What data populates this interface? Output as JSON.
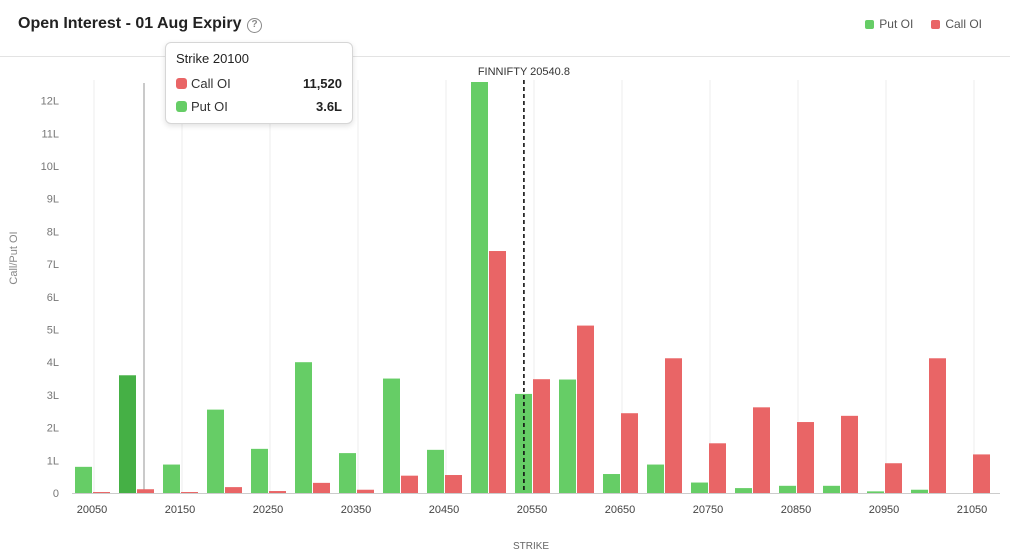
{
  "header": {
    "title": "Open Interest - 01 Aug Expiry",
    "help_icon": "question-circle-icon"
  },
  "legend": [
    {
      "label": "Put OI",
      "color": "#66cd66"
    },
    {
      "label": "Call OI",
      "color": "#e96566"
    }
  ],
  "tooltip": {
    "title": "Strike 20100",
    "rows": [
      {
        "label": "Call OI",
        "value": "11,520",
        "color": "#e96566"
      },
      {
        "label": "Put OI",
        "value": "3.6L",
        "color": "#66cd66"
      }
    ]
  },
  "chart_data": {
    "type": "bar",
    "xlabel": "STRIKE",
    "ylabel": "Call/Put OI",
    "ylim": [
      0,
      12.5
    ],
    "y_unit": "L (lakh)",
    "y_ticks": [
      "0",
      "1L",
      "2L",
      "3L",
      "4L",
      "5L",
      "6L",
      "7L",
      "8L",
      "9L",
      "10L",
      "11L",
      "12L"
    ],
    "x_tick_labels": [
      "20050",
      "20150",
      "20250",
      "20350",
      "20450",
      "20550",
      "20650",
      "20750",
      "20850",
      "20950",
      "21050"
    ],
    "categories": [
      "20050",
      "20100",
      "20150",
      "20200",
      "20250",
      "20300",
      "20350",
      "20400",
      "20450",
      "20500",
      "20550",
      "20600",
      "20650",
      "20700",
      "20750",
      "20800",
      "20850",
      "20900",
      "20950",
      "21000",
      "21050"
    ],
    "series": [
      {
        "name": "Put OI",
        "color": "#66cd66",
        "values": [
          0.8,
          3.6,
          0.87,
          2.55,
          1.35,
          4.0,
          1.22,
          3.5,
          1.32,
          12.6,
          3.03,
          3.47,
          0.58,
          0.87,
          0.32,
          0.15,
          0.22,
          0.22,
          0.05,
          0.1,
          0
        ]
      },
      {
        "name": "Call OI",
        "color": "#e96566",
        "values": [
          0.03,
          0.115,
          0.03,
          0.18,
          0.06,
          0.31,
          0.1,
          0.53,
          0.55,
          7.4,
          3.48,
          5.12,
          2.44,
          4.12,
          1.52,
          2.62,
          2.17,
          2.36,
          0.91,
          4.12,
          1.18
        ]
      }
    ],
    "highlight_category": "20100",
    "reference_line": {
      "label": "FINNIFTY 20540.8",
      "value": 20540.8
    },
    "grid": "vertical"
  }
}
